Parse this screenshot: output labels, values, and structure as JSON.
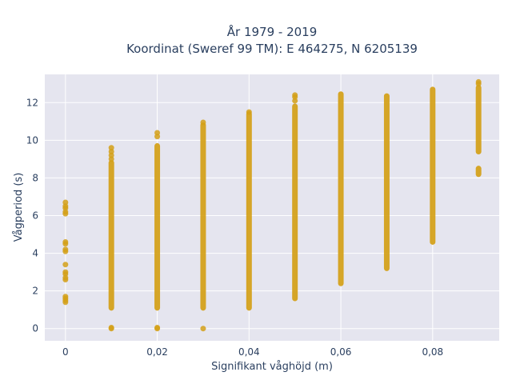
{
  "chart_data": {
    "type": "scatter",
    "title_line1": "År 1979 - 2019",
    "title_line2": "Koordinat (Sweref 99 TM): E 464275, N 6205139",
    "xlabel": "Signifikant våghöjd (m)",
    "ylabel": "Vågperiod (s)",
    "xlim": [
      -0.0045,
      0.0945
    ],
    "ylim": [
      -0.65,
      13.5
    ],
    "x_ticks": [
      0,
      0.02,
      0.04,
      0.06,
      0.08
    ],
    "x_tick_labels": [
      "0",
      "0,02",
      "0,04",
      "0,06",
      "0,08"
    ],
    "y_ticks": [
      0,
      2,
      4,
      6,
      8,
      10,
      12
    ],
    "y_tick_labels": [
      "0",
      "2",
      "4",
      "6",
      "8",
      "10",
      "12"
    ],
    "grid": true,
    "marker_color": "#d4a017",
    "background_color": "#e5e5ef",
    "columns": [
      {
        "x": 0,
        "segments": [],
        "points": [
          1.4,
          1.5,
          1.6,
          1.7,
          2.6,
          2.7,
          2.9,
          3.0,
          3.4,
          4.1,
          4.2,
          4.5,
          4.6,
          6.1,
          6.2,
          6.4,
          6.5,
          6.7
        ]
      },
      {
        "x": 0.01,
        "segments": [
          [
            1.1,
            8.8
          ]
        ],
        "points": [
          0.0,
          0.05,
          9.0,
          9.2,
          9.4,
          9.6
        ]
      },
      {
        "x": 0.02,
        "segments": [
          [
            1.1,
            9.7
          ]
        ],
        "points": [
          0.0,
          0.05,
          10.2,
          10.4
        ]
      },
      {
        "x": 0.03,
        "segments": [
          [
            1.1,
            10.8
          ]
        ],
        "points": [
          0.0,
          10.95
        ]
      },
      {
        "x": 0.04,
        "segments": [
          [
            1.1,
            11.4
          ]
        ],
        "points": [
          11.5
        ]
      },
      {
        "x": 0.05,
        "segments": [
          [
            1.6,
            11.8
          ]
        ],
        "points": [
          12.1,
          12.3,
          12.4
        ]
      },
      {
        "x": 0.06,
        "segments": [
          [
            2.4,
            12.45
          ]
        ],
        "points": []
      },
      {
        "x": 0.07,
        "segments": [
          [
            3.2,
            12.35
          ]
        ],
        "points": []
      },
      {
        "x": 0.08,
        "segments": [
          [
            4.6,
            12.7
          ]
        ],
        "points": []
      },
      {
        "x": 0.09,
        "segments": [
          [
            8.2,
            8.5
          ],
          [
            9.4,
            12.8
          ]
        ],
        "points": [
          13.0,
          13.1
        ]
      }
    ]
  }
}
